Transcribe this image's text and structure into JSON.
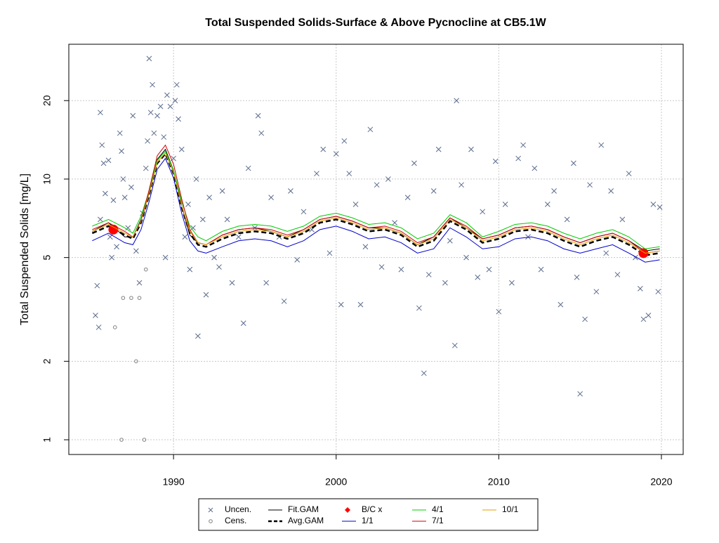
{
  "chart_data": {
    "type": "scatter-line",
    "title": "Total Suspended Solids-Surface & Above Pycnocline at CB5.1W",
    "y_label": "Total Suspended Solids [mg/L]",
    "xlim": [
      1983.56,
      2021.34
    ],
    "ylim": [
      0.878,
      32.9
    ],
    "log_y": true,
    "grid": true,
    "xticks": [
      1990,
      2000,
      2010,
      2020
    ],
    "yticks": [
      1,
      2,
      5,
      10,
      20
    ],
    "series": [
      {
        "name": "Uncen.",
        "style": "cross",
        "color": "#5a6b8c",
        "x": [
          1985.2,
          1985.4,
          1985.3,
          1985.5,
          1985.6,
          1985.7,
          1985.5,
          1985.8,
          1986.0,
          1986.1,
          1986.2,
          1986.3,
          1986.5,
          1986.7,
          1986.8,
          1986.9,
          1987.0,
          1987.2,
          1987.4,
          1987.5,
          1987.7,
          1987.9,
          1988.1,
          1988.3,
          1988.4,
          1988.5,
          1988.6,
          1988.7,
          1988.8,
          1989.0,
          1989.2,
          1989.4,
          1989.5,
          1989.6,
          1989.8,
          1990.0,
          1990.1,
          1990.2,
          1990.3,
          1990.5,
          1990.7,
          1990.9,
          1991.0,
          1991.2,
          1991.4,
          1991.5,
          1991.8,
          1992.0,
          1992.2,
          1992.5,
          1992.8,
          1993.0,
          1993.3,
          1993.6,
          1994.0,
          1994.3,
          1994.6,
          1995.0,
          1995.2,
          1995.4,
          1995.7,
          1996.0,
          1996.5,
          1996.8,
          1997.2,
          1997.6,
          1998.0,
          1998.5,
          1998.8,
          1999.2,
          1999.6,
          2000.0,
          2000.3,
          2000.5,
          2000.8,
          2001.2,
          2001.5,
          2001.8,
          2002.1,
          2002.5,
          2002.8,
          2003.2,
          2003.6,
          2004.0,
          2004.4,
          2004.8,
          2005.1,
          2005.4,
          2005.7,
          2006.0,
          2006.3,
          2006.7,
          2007.0,
          2007.3,
          2007.4,
          2007.7,
          2008.0,
          2008.3,
          2008.7,
          2009.0,
          2009.4,
          2009.8,
          2010.0,
          2010.4,
          2010.8,
          2011.2,
          2011.5,
          2011.8,
          2012.2,
          2012.6,
          2013.0,
          2013.4,
          2013.8,
          2014.2,
          2014.6,
          2014.8,
          2015.0,
          2015.3,
          2015.6,
          2016.0,
          2016.3,
          2016.6,
          2016.9,
          2017.3,
          2017.6,
          2018.0,
          2018.4,
          2018.7,
          2018.9,
          2019.2,
          2019.5,
          2019.8,
          2019.9
        ],
        "values": [
          3.0,
          2.7,
          3.9,
          18,
          13.5,
          11.5,
          7.0,
          8.8,
          11.8,
          6.0,
          5.0,
          8.3,
          5.5,
          15,
          12.8,
          10,
          8.5,
          6.5,
          9.3,
          17.5,
          5.3,
          4.0,
          7.4,
          11,
          14,
          29,
          18,
          23,
          15,
          17.5,
          19,
          14.5,
          5.0,
          21,
          19,
          12,
          20,
          23,
          17,
          13,
          6.0,
          8.0,
          4.5,
          6.5,
          10,
          2.5,
          7.0,
          3.6,
          8.5,
          5.0,
          4.6,
          9.0,
          7.0,
          4.0,
          6.0,
          2.8,
          11,
          6.5,
          17.5,
          15,
          4.0,
          8.5,
          6.0,
          3.4,
          9.0,
          4.9,
          7.5,
          6.4,
          10.5,
          13,
          5.2,
          12.5,
          3.3,
          14,
          10.5,
          8.0,
          3.3,
          5.5,
          15.5,
          9.5,
          4.6,
          10,
          6.8,
          4.5,
          8.5,
          11.5,
          3.2,
          1.8,
          4.3,
          9.0,
          13,
          4.0,
          5.8,
          2.3,
          20,
          9.5,
          5.0,
          13,
          4.2,
          7.5,
          4.5,
          11.7,
          3.1,
          8.0,
          4.0,
          12,
          13.5,
          6.0,
          11,
          4.5,
          8.0,
          9.0,
          3.3,
          7.0,
          11.5,
          4.2,
          1.5,
          2.9,
          9.5,
          3.7,
          13.5,
          5.2,
          9.0,
          4.3,
          7.0,
          10.5,
          5.0,
          3.8,
          2.9,
          3.0,
          8.0,
          3.7,
          7.8
        ]
      },
      {
        "name": "Cens.",
        "style": "circle",
        "color": "#808080",
        "x": [
          1986.4,
          1986.8,
          1986.9,
          1987.4,
          1987.7,
          1987.9,
          1988.2,
          1988.3
        ],
        "values": [
          2.7,
          1.0,
          3.5,
          3.5,
          2.0,
          3.5,
          1.0,
          4.5
        ]
      },
      {
        "name": "Fit.GAM",
        "style": "line",
        "color": "#000000",
        "x": [
          1985,
          1986,
          1987,
          1987.5,
          1988,
          1988.5,
          1989,
          1989.5,
          1990,
          1990.5,
          1991,
          1991.5,
          1992,
          1993,
          1994,
          1995,
          1996,
          1997,
          1998,
          1999,
          2000,
          2001,
          2002,
          2003,
          2004,
          2005,
          2006,
          2007,
          2008,
          2009,
          2010,
          2011,
          2012,
          2013,
          2014,
          2015,
          2016,
          2017,
          2018,
          2019,
          2019.9
        ],
        "values": [
          6.3,
          6.8,
          6.0,
          6.0,
          7.0,
          8.9,
          11.9,
          13.0,
          10.8,
          7.9,
          6.1,
          5.7,
          5.6,
          6.1,
          6.4,
          6.5,
          6.3,
          6.0,
          6.4,
          7.0,
          7.2,
          6.9,
          6.5,
          6.5,
          6.2,
          5.6,
          6.0,
          7.1,
          6.5,
          5.9,
          6.1,
          6.5,
          6.6,
          6.4,
          6.0,
          5.7,
          6.0,
          6.2,
          5.8,
          5.3,
          5.4
        ]
      },
      {
        "name": "Avg.GAM",
        "style": "dashed",
        "color": "#000000",
        "x": [
          1985,
          1986,
          1987,
          1987.5,
          1988,
          1988.5,
          1989,
          1989.5,
          1990,
          1990.5,
          1991,
          1991.5,
          1992,
          1993,
          1994,
          1995,
          1996,
          1997,
          1998,
          1999,
          2000,
          2001,
          2002,
          2003,
          2004,
          2005,
          2006,
          2007,
          2008,
          2009,
          2010,
          2011,
          2012,
          2013,
          2014,
          2015,
          2016,
          2017,
          2018,
          2019,
          2019.9
        ],
        "values": [
          6.2,
          6.6,
          6.1,
          5.9,
          6.8,
          8.7,
          11.5,
          12.5,
          10.5,
          7.8,
          6.2,
          5.6,
          5.5,
          5.9,
          6.2,
          6.3,
          6.2,
          5.9,
          6.2,
          6.8,
          7.0,
          6.7,
          6.3,
          6.4,
          6.1,
          5.5,
          5.8,
          6.9,
          6.4,
          5.7,
          5.9,
          6.3,
          6.4,
          6.2,
          5.8,
          5.5,
          5.8,
          6.0,
          5.6,
          5.1,
          5.2
        ]
      },
      {
        "name": "B/C x",
        "style": "dot",
        "color": "#ff0000",
        "x": [
          1986.3,
          2018.9
        ],
        "values": [
          6.4,
          5.2
        ]
      },
      {
        "name": "1/1",
        "style": "line",
        "color": "#0000cc",
        "x": [
          1985,
          1986,
          1987,
          1987.5,
          1988,
          1988.5,
          1989,
          1989.5,
          1990,
          1990.5,
          1991,
          1991.5,
          1992,
          1993,
          1994,
          1995,
          1996,
          1997,
          1998,
          1999,
          2000,
          2001,
          2002,
          2003,
          2004,
          2005,
          2006,
          2007,
          2008,
          2009,
          2010,
          2011,
          2012,
          2013,
          2014,
          2015,
          2016,
          2017,
          2018,
          2019,
          2019.9
        ],
        "values": [
          5.8,
          6.2,
          5.7,
          5.6,
          6.4,
          8.2,
          10.9,
          12.0,
          10.1,
          7.4,
          5.8,
          5.3,
          5.2,
          5.5,
          5.8,
          5.9,
          5.8,
          5.5,
          5.8,
          6.4,
          6.6,
          6.3,
          5.9,
          6.0,
          5.7,
          5.2,
          5.4,
          6.5,
          6.0,
          5.4,
          5.5,
          5.9,
          6.0,
          5.8,
          5.4,
          5.2,
          5.4,
          5.6,
          5.2,
          4.8,
          4.9
        ]
      },
      {
        "name": "4/1",
        "style": "line",
        "color": "#00cc00",
        "x": [
          1985,
          1986,
          1987,
          1987.5,
          1988,
          1988.5,
          1989,
          1989.5,
          1990,
          1990.5,
          1991,
          1991.5,
          1992,
          1993,
          1994,
          1995,
          1996,
          1997,
          1998,
          1999,
          2000,
          2001,
          2002,
          2003,
          2004,
          2005,
          2006,
          2007,
          2008,
          2009,
          2010,
          2011,
          2012,
          2013,
          2014,
          2015,
          2016,
          2017,
          2018,
          2019,
          2019.9
        ],
        "values": [
          6.6,
          7.0,
          6.5,
          6.2,
          7.2,
          9.0,
          11.8,
          12.8,
          10.8,
          8.2,
          6.6,
          6.0,
          5.8,
          6.3,
          6.6,
          6.7,
          6.6,
          6.3,
          6.6,
          7.2,
          7.4,
          7.1,
          6.7,
          6.8,
          6.5,
          5.9,
          6.2,
          7.3,
          6.8,
          6.0,
          6.3,
          6.7,
          6.8,
          6.6,
          6.2,
          5.9,
          6.2,
          6.4,
          6.0,
          5.4,
          5.5
        ]
      },
      {
        "name": "7/1",
        "style": "line",
        "color": "#cc0000",
        "x": [
          1985,
          1986,
          1987,
          1987.5,
          1988,
          1988.5,
          1989,
          1989.5,
          1990,
          1990.5,
          1991,
          1991.5,
          1992,
          1993,
          1994,
          1995,
          1996,
          1997,
          1998,
          1999,
          2000,
          2001,
          2002,
          2003,
          2004,
          2005,
          2006,
          2007,
          2008,
          2009,
          2010,
          2011,
          2012,
          2013,
          2014,
          2015,
          2016,
          2017,
          2018,
          2019,
          2019.9
        ],
        "values": [
          6.4,
          6.8,
          6.3,
          6.0,
          6.9,
          9.1,
          12.3,
          13.5,
          11.4,
          8.4,
          6.4,
          5.7,
          5.6,
          6.1,
          6.4,
          6.5,
          6.4,
          6.1,
          6.4,
          7.0,
          7.2,
          6.9,
          6.5,
          6.6,
          6.3,
          5.7,
          6.0,
          7.1,
          6.6,
          5.9,
          6.1,
          6.5,
          6.6,
          6.4,
          6.0,
          5.7,
          6.0,
          6.2,
          5.8,
          5.2,
          5.3
        ]
      },
      {
        "name": "10/1",
        "style": "line",
        "color": "#e69f00",
        "x": [
          1985,
          1986,
          1987,
          1987.5,
          1988,
          1988.5,
          1989,
          1989.5,
          1990,
          1990.5,
          1991,
          1991.5,
          1992,
          1993,
          1994,
          1995,
          1996,
          1997,
          1998,
          1999,
          2000,
          2001,
          2002,
          2003,
          2004,
          2005,
          2006,
          2007,
          2008,
          2009,
          2010,
          2011,
          2012,
          2013,
          2014,
          2015,
          2016,
          2017,
          2018,
          2019,
          2019.9
        ],
        "values": [
          6.3,
          6.7,
          6.2,
          6.0,
          6.9,
          8.8,
          11.6,
          12.6,
          10.6,
          7.9,
          6.3,
          5.7,
          5.6,
          6.0,
          6.3,
          6.4,
          6.3,
          6.0,
          6.3,
          6.9,
          7.1,
          6.8,
          6.4,
          6.5,
          6.2,
          5.6,
          5.9,
          7.0,
          6.5,
          5.8,
          6.0,
          6.4,
          6.5,
          6.3,
          5.9,
          5.6,
          5.9,
          6.1,
          5.7,
          5.2,
          5.3
        ]
      }
    ]
  }
}
